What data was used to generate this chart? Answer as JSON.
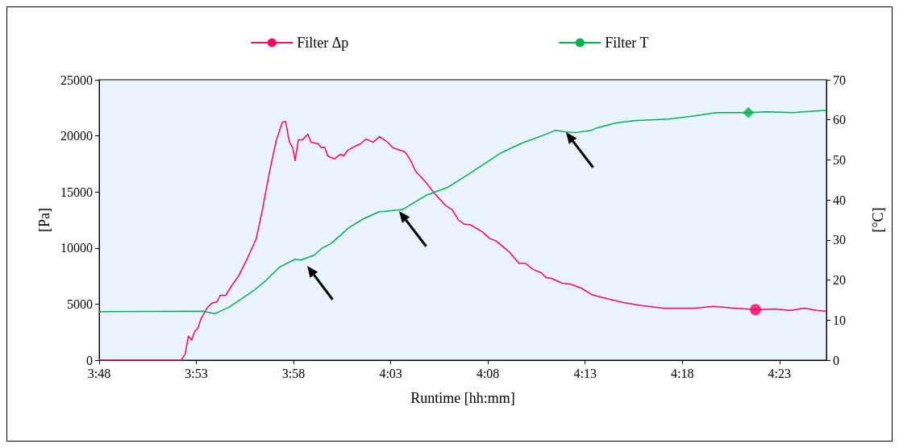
{
  "chart_data": {
    "type": "line",
    "xlabel": "Runtime [hh:mm]",
    "ylabel": "[Pa]",
    "y2label": "[°C]",
    "legend": "top",
    "grid": false,
    "xlim": [
      3.8,
      4.4236
    ],
    "xticks": [
      {
        "value": 3.8,
        "label": "3:48"
      },
      {
        "value": 3.88333,
        "label": "3:53"
      },
      {
        "value": 3.96667,
        "label": "3:58"
      },
      {
        "value": 4.05,
        "label": "4:03"
      },
      {
        "value": 4.13333,
        "label": "4:08"
      },
      {
        "value": 4.21667,
        "label": "4:13"
      },
      {
        "value": 4.3,
        "label": "4:18"
      },
      {
        "value": 4.38333,
        "label": "4:23"
      }
    ],
    "ylim": [
      0,
      25000
    ],
    "yticks": [
      0,
      5000,
      10000,
      15000,
      20000,
      25000
    ],
    "y2lim": [
      0,
      70
    ],
    "y2ticks": [
      0,
      10,
      20,
      30,
      40,
      50,
      60,
      70
    ],
    "series": [
      {
        "type": "scatter",
        "color": "#ff0066",
        "marker": "circle",
        "x": [
          4.3628
        ],
        "values": [
          4500
        ]
      },
      {
        "type": "scatter",
        "color": "#00b050",
        "marker": "diamond",
        "axis": "y2",
        "x": [
          4.3567
        ],
        "values": [
          61.8
        ]
      },
      {
        "name": "Filter Δp",
        "color": "#ff0066",
        "x": [
          3.8,
          3.8704,
          3.8738,
          3.8765,
          3.8792,
          3.882,
          3.8847,
          3.8874,
          3.8929,
          3.8963,
          3.9011,
          3.9038,
          3.9086,
          3.9127,
          3.9195,
          3.9264,
          3.9346,
          3.94,
          3.9455,
          3.9516,
          3.9571,
          3.9598,
          3.9632,
          3.966,
          3.968,
          3.9708,
          3.9742,
          3.979,
          3.9817,
          3.9878,
          3.9906,
          3.9933,
          3.996,
          4.0015,
          4.007,
          4.0097,
          4.0131,
          4.0193,
          4.024,
          4.0288,
          4.035,
          4.0404,
          4.0466,
          4.052,
          4.0623,
          4.0671,
          4.0712,
          4.0801,
          4.0876,
          4.0971,
          4.1026,
          4.1081,
          4.1128,
          4.1183,
          4.1286,
          4.1347,
          4.1402,
          4.1518,
          4.16,
          4.1654,
          4.1723,
          4.1791,
          4.1832,
          4.188,
          4.1969,
          4.2037,
          4.2133,
          4.2221,
          4.2269,
          4.2378,
          4.2495,
          4.2652,
          4.2836,
          4.2952,
          4.3109,
          4.3266,
          4.3451,
          4.3628,
          4.3792,
          4.3929,
          4.4045,
          4.4154,
          4.4236
        ],
        "values": [
          0,
          0,
          570,
          2140,
          1790,
          2570,
          2860,
          3710,
          4710,
          5070,
          5210,
          5790,
          5790,
          6500,
          7500,
          8930,
          10790,
          13430,
          16500,
          19500,
          21210,
          21290,
          19430,
          18930,
          17790,
          19640,
          19640,
          20140,
          19430,
          19290,
          18930,
          19000,
          18210,
          17930,
          18360,
          18210,
          18710,
          19070,
          19290,
          19710,
          19430,
          19930,
          19500,
          18930,
          18570,
          17790,
          16860,
          15860,
          14860,
          13790,
          13430,
          12500,
          12140,
          12070,
          11430,
          10860,
          10640,
          9640,
          8640,
          8640,
          8070,
          7790,
          7360,
          7290,
          6860,
          6790,
          6430,
          5860,
          5710,
          5430,
          5140,
          4860,
          4640,
          4640,
          4640,
          4790,
          4640,
          4500,
          4570,
          4430,
          4640,
          4430,
          4360
        ]
      },
      {
        "name": "Filter T",
        "color": "#00b050",
        "axis": "y2",
        "x": [
          3.8,
          3.8895,
          3.899,
          3.9113,
          3.9318,
          3.9434,
          3.9544,
          3.968,
          3.9728,
          3.9844,
          3.9913,
          3.9981,
          4.007,
          4.0138,
          4.0261,
          4.0398,
          4.0602,
          4.0807,
          4.0992,
          4.1176,
          4.1333,
          4.1449,
          4.1627,
          4.1832,
          4.1914,
          4.1996,
          4.2085,
          4.2221,
          4.2269,
          4.2426,
          4.2583,
          4.2884,
          4.3109,
          4.3294,
          4.3567,
          4.3724,
          4.3949,
          4.4236
        ],
        "values": [
          12.1,
          12.2,
          11.6,
          13.2,
          17.2,
          20.0,
          23.2,
          25.2,
          25.0,
          26.2,
          28.0,
          29.0,
          31.2,
          33.0,
          35.2,
          37.0,
          37.6,
          41.2,
          43.2,
          46.6,
          49.6,
          51.8,
          54.2,
          56.4,
          57.4,
          57.0,
          56.8,
          57.4,
          58.0,
          59.2,
          59.8,
          60.2,
          61.0,
          61.8,
          61.8,
          62.0,
          61.8,
          62.4
        ]
      }
    ]
  }
}
